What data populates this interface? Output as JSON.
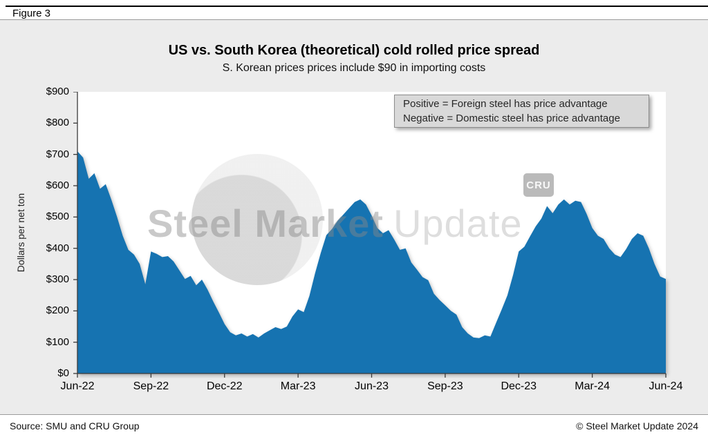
{
  "figure_label": "Figure 3",
  "annotation": {
    "line1": "Positive = Foreign steel has price advantage",
    "line2": "Negative = Domestic steel has price advantage"
  },
  "watermark": {
    "brand_bold": "Steel Market",
    "brand_light": "Update",
    "cru": "CRU"
  },
  "footer": {
    "source": "Source: SMU and CRU Group",
    "copyright": "© Steel Market Update 2024"
  },
  "chart_data": {
    "type": "area",
    "title": "US vs. South Korea (theoretical) cold rolled price spread",
    "subtitle": "S. Korean prices prices include $90 in importing costs",
    "xlabel": "",
    "ylabel": "Dollars per net ton",
    "ylim": [
      0,
      900
    ],
    "ytick_values": [
      0,
      100,
      200,
      300,
      400,
      500,
      600,
      700,
      800,
      900
    ],
    "ytick_labels": [
      "$0",
      "$100",
      "$200",
      "$300",
      "$400",
      "$500",
      "$600",
      "$700",
      "$800",
      "$900"
    ],
    "categories": [
      "Jun-22",
      "Sep-22",
      "Dec-22",
      "Mar-23",
      "Jun-23",
      "Sep-23",
      "Dec-23",
      "Mar-24",
      "Jun-24"
    ],
    "x_tick_indices": [
      0,
      13,
      26,
      39,
      52,
      65,
      78,
      91,
      104
    ],
    "x_unit": "weekly price spread, US minus South Korea (import-adjusted), dollars per net ton",
    "grid": "off",
    "legend": "none",
    "area_color": "#1673b1",
    "values": [
      710,
      690,
      622,
      640,
      590,
      605,
      555,
      500,
      440,
      395,
      380,
      350,
      285,
      390,
      382,
      372,
      375,
      358,
      330,
      302,
      312,
      282,
      300,
      268,
      230,
      195,
      158,
      132,
      122,
      128,
      118,
      126,
      115,
      128,
      138,
      148,
      142,
      150,
      182,
      205,
      196,
      248,
      320,
      385,
      442,
      462,
      488,
      508,
      528,
      548,
      556,
      540,
      505,
      465,
      448,
      458,
      428,
      395,
      400,
      355,
      332,
      308,
      298,
      255,
      235,
      218,
      200,
      188,
      148,
      128,
      115,
      113,
      122,
      118,
      162,
      205,
      250,
      315,
      390,
      405,
      438,
      470,
      495,
      535,
      512,
      540,
      556,
      540,
      552,
      548,
      510,
      465,
      440,
      430,
      400,
      380,
      372,
      398,
      430,
      448,
      440,
      400,
      350,
      310,
      302
    ]
  }
}
